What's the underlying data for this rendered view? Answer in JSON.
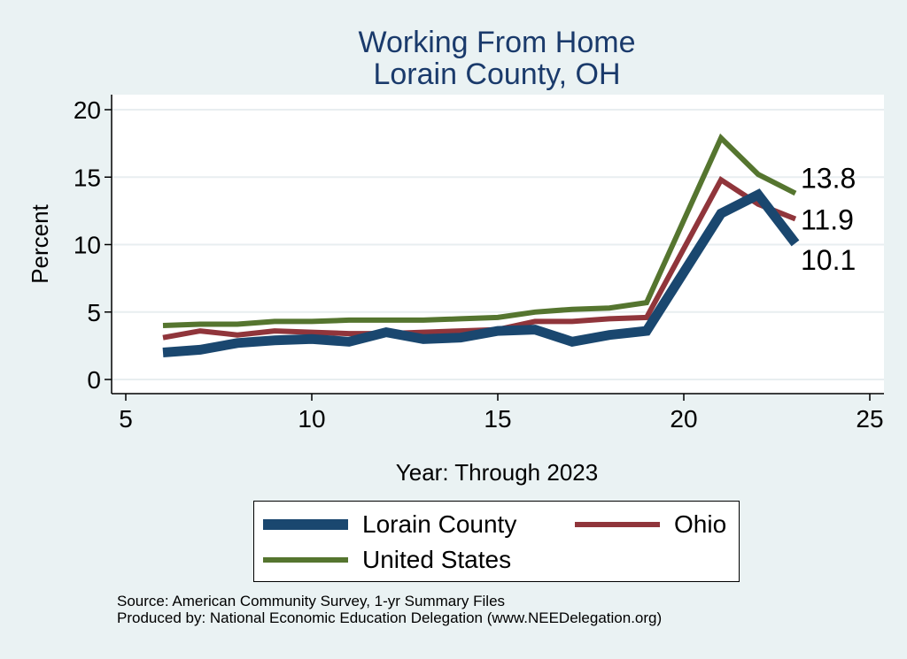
{
  "chart_data": {
    "type": "line",
    "title": "Working From Home",
    "subtitle": "Lorain County, OH",
    "xlabel": "Year: Through 2023",
    "ylabel": "Percent",
    "xlim": [
      5,
      25
    ],
    "ylim": [
      0,
      20
    ],
    "xticks": [
      5,
      10,
      15,
      20,
      25
    ],
    "yticks": [
      0,
      5,
      10,
      15,
      20
    ],
    "grid": true,
    "legend_position": "bottom",
    "x": [
      6,
      7,
      8,
      9,
      10,
      11,
      12,
      13,
      14,
      15,
      16,
      17,
      18,
      19,
      21,
      22,
      23
    ],
    "series": [
      {
        "name": "Lorain County",
        "color": "#1a476f",
        "values": [
          2.0,
          2.2,
          2.7,
          2.9,
          3.0,
          2.8,
          3.5,
          3.0,
          3.1,
          3.6,
          3.7,
          2.8,
          3.3,
          3.6,
          12.3,
          13.7,
          10.1
        ],
        "end_label": "10.1"
      },
      {
        "name": "Ohio",
        "color": "#90353b",
        "values": [
          3.1,
          3.6,
          3.3,
          3.6,
          3.5,
          3.4,
          3.4,
          3.5,
          3.6,
          3.7,
          4.3,
          4.3,
          4.5,
          4.6,
          14.8,
          13.0,
          11.9
        ],
        "end_label": "11.9"
      },
      {
        "name": "United States",
        "color": "#55752f",
        "values": [
          4.0,
          4.1,
          4.1,
          4.3,
          4.3,
          4.4,
          4.4,
          4.4,
          4.5,
          4.6,
          5.0,
          5.2,
          5.3,
          5.7,
          17.9,
          15.2,
          13.8
        ],
        "end_label": "13.8"
      }
    ]
  },
  "legend": {
    "items": [
      "Lorain County",
      "Ohio",
      "United States"
    ]
  },
  "footer": {
    "source": "Source: American Community Survey, 1-yr Summary Files",
    "produced": "Produced by: National Economic Education Delegation (www.NEEDelegation.org)"
  }
}
